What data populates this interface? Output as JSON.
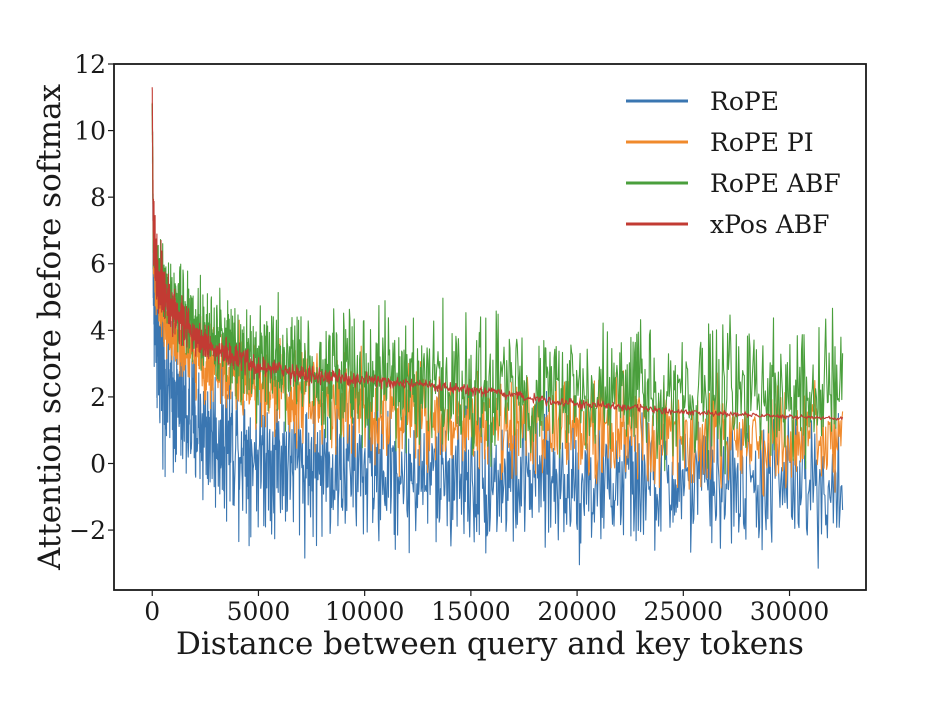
{
  "chart_data": {
    "type": "line",
    "title": "",
    "xlabel": "Distance between query and key tokens",
    "ylabel": "Attention score before softmax",
    "xlim": [
      -1800,
      33600
    ],
    "ylim": [
      -3.8,
      12
    ],
    "xticks": [
      {
        "value": 0,
        "label": "0"
      },
      {
        "value": 5000,
        "label": "5000"
      },
      {
        "value": 10000,
        "label": "10000"
      },
      {
        "value": 15000,
        "label": "15000"
      },
      {
        "value": 20000,
        "label": "20000"
      },
      {
        "value": 25000,
        "label": "25000"
      },
      {
        "value": 30000,
        "label": "30000"
      }
    ],
    "yticks": [
      {
        "value": -2,
        "label": "−2"
      },
      {
        "value": 0,
        "label": "0"
      },
      {
        "value": 2,
        "label": "2"
      },
      {
        "value": 4,
        "label": "4"
      },
      {
        "value": 6,
        "label": "6"
      },
      {
        "value": 8,
        "label": "8"
      },
      {
        "value": 10,
        "label": "10"
      },
      {
        "value": 12,
        "label": "12"
      }
    ],
    "legend_position": "top-right",
    "series": [
      {
        "name": "RoPE",
        "color": "#3a76b1",
        "x": [
          0,
          50,
          200,
          500,
          1000,
          2000,
          3000,
          5000,
          8000,
          10000,
          15000,
          20000,
          25000,
          30000,
          32500
        ],
        "y_center": [
          10.8,
          5.6,
          3.6,
          2.7,
          1.9,
          1.2,
          0.8,
          0.3,
          -0.1,
          -0.2,
          -0.4,
          -0.55,
          -0.6,
          -0.6,
          -0.6
        ],
        "y_spread": [
          0.3,
          1.3,
          1.5,
          1.6,
          1.6,
          1.6,
          1.6,
          1.6,
          1.6,
          1.6,
          1.6,
          1.5,
          1.5,
          1.5,
          1.5
        ]
      },
      {
        "name": "RoPE PI",
        "color": "#f08a2c",
        "x": [
          0,
          50,
          200,
          500,
          1000,
          2000,
          3000,
          5000,
          8000,
          10000,
          15000,
          20000,
          25000,
          30000,
          32500
        ],
        "y_center": [
          10.8,
          6.3,
          5.0,
          4.3,
          3.8,
          3.2,
          2.9,
          2.4,
          1.9,
          1.7,
          1.3,
          1.0,
          0.8,
          0.7,
          0.6
        ],
        "y_spread": [
          0.2,
          0.4,
          0.5,
          0.6,
          0.7,
          0.8,
          0.9,
          1.0,
          1.0,
          1.1,
          1.1,
          1.1,
          1.1,
          1.1,
          1.1
        ]
      },
      {
        "name": "RoPE ABF",
        "color": "#4a9f3c",
        "x": [
          0,
          50,
          200,
          500,
          1000,
          2000,
          3000,
          5000,
          8000,
          10000,
          15000,
          20000,
          25000,
          30000,
          32500
        ],
        "y_center": [
          10.8,
          6.9,
          6.0,
          5.4,
          4.9,
          4.2,
          3.8,
          3.3,
          2.8,
          2.6,
          2.3,
          2.1,
          2.1,
          2.0,
          2.0
        ],
        "y_spread": [
          0.2,
          0.5,
          0.6,
          0.7,
          0.8,
          0.9,
          1.0,
          1.2,
          1.3,
          1.4,
          1.4,
          1.4,
          1.4,
          1.4,
          1.4
        ]
      },
      {
        "name": "xPos ABF",
        "color": "#c23b33",
        "x": [
          0,
          50,
          200,
          500,
          1000,
          2000,
          3000,
          5000,
          8000,
          10000,
          15000,
          20000,
          25000,
          30000,
          32500
        ],
        "y_center": [
          11.3,
          7.0,
          6.0,
          5.2,
          4.6,
          3.9,
          3.4,
          2.9,
          2.6,
          2.5,
          2.2,
          1.8,
          1.55,
          1.4,
          1.35
        ],
        "y_spread": [
          0.1,
          0.6,
          0.8,
          0.7,
          0.6,
          0.45,
          0.35,
          0.25,
          0.2,
          0.15,
          0.12,
          0.1,
          0.07,
          0.05,
          0.04
        ]
      }
    ]
  }
}
